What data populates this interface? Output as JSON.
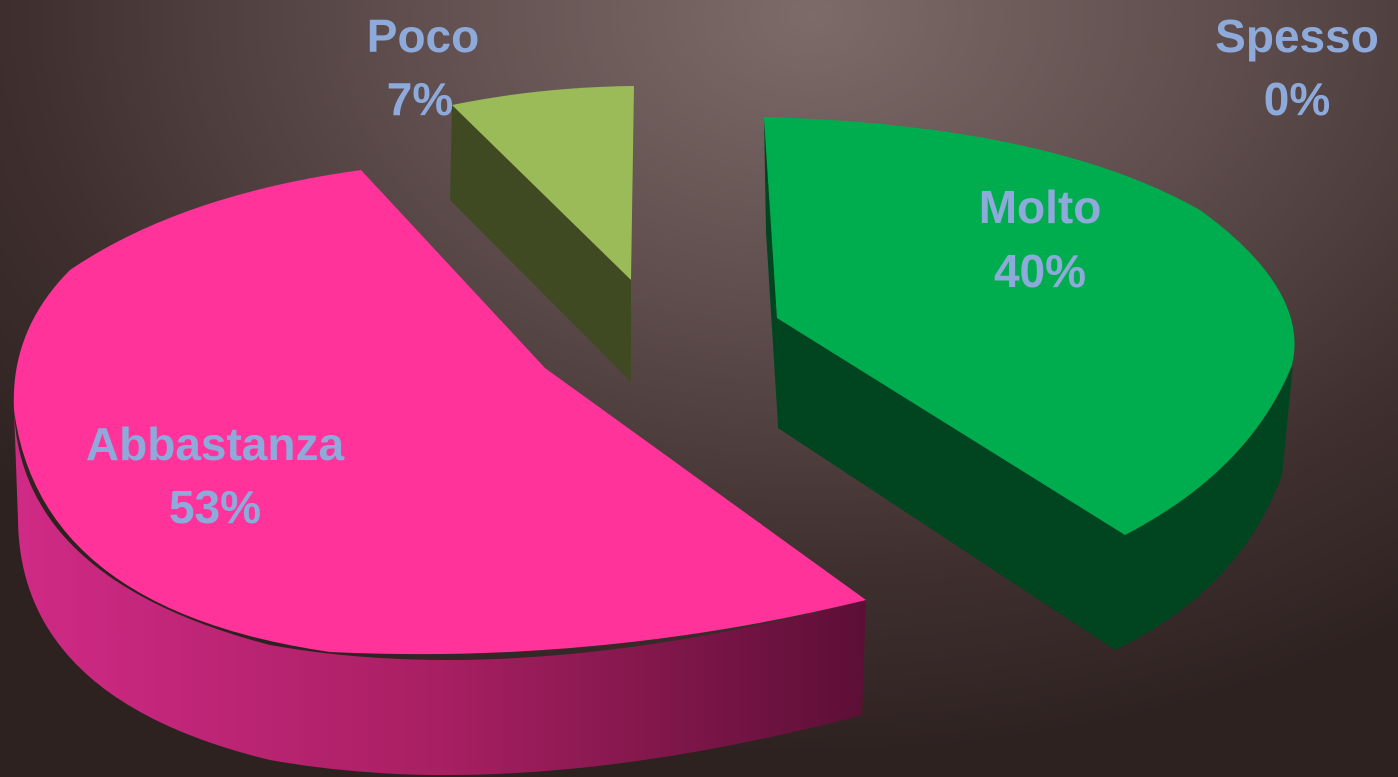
{
  "chart_data": {
    "type": "pie",
    "style": "3d-exploded",
    "categories": [
      "Molto",
      "Abbastanza",
      "Poco",
      "Spesso"
    ],
    "values": [
      40,
      53,
      7,
      0
    ],
    "value_labels": [
      "40%",
      "53%",
      "7%",
      "0%"
    ],
    "colors": [
      "#00ad4e",
      "#ff3399",
      "#9bbb59",
      "#4f81bd"
    ],
    "side_colors": [
      "#00451f",
      "#b01e62",
      "#3f4a23",
      "#2a4466"
    ],
    "label_color": "#8eaadb",
    "title": "",
    "legend": "none"
  }
}
